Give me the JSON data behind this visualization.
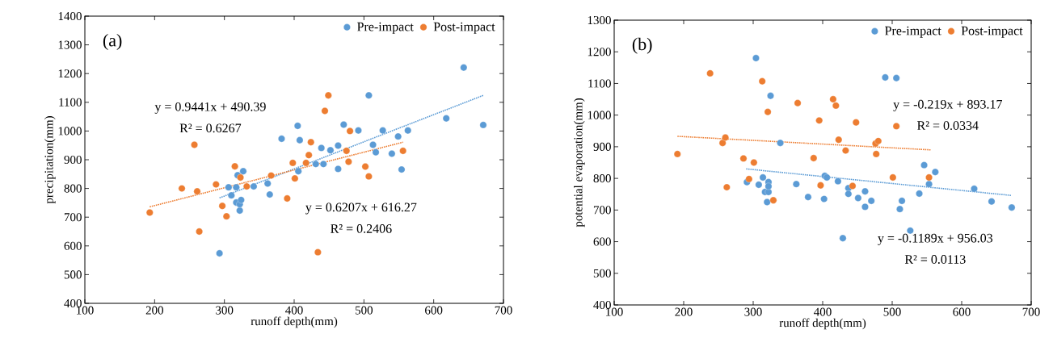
{
  "chart_data": [
    {
      "type": "scatter",
      "xlabel": "runoff depth(mm)",
      "ylabel": "precipitation(mm)",
      "xlim": [
        100,
        700
      ],
      "xticks": [
        100,
        200,
        300,
        400,
        500,
        600,
        700
      ],
      "ylim": [
        400,
        1400
      ],
      "yticks": [
        400,
        500,
        600,
        700,
        800,
        900,
        1000,
        1100,
        1200,
        1300,
        1400
      ],
      "grid": false,
      "legend": "top right",
      "marker": "circle",
      "annotations": [
        "(a)",
        "y = 0.9441x + 490.39",
        "R² = 0.6267",
        "y = 0.6207x + 616.27",
        "R² = 0.2406"
      ],
      "series": [
        {
          "name": "Pre-impact",
          "color": "#5b9bd5",
          "x": [
            293,
            306,
            310,
            317,
            317,
            319,
            322,
            322,
            323,
            324,
            327,
            342,
            362,
            365,
            382,
            405,
            406,
            408,
            431,
            439,
            442,
            452,
            463,
            463,
            471,
            492,
            507,
            513,
            517,
            527,
            540,
            549,
            554,
            563,
            618,
            643,
            671
          ],
          "values": [
            574,
            804,
            776,
            804,
            751,
            846,
            723,
            745,
            null,
            760,
            860,
            807,
            817,
            779,
            973,
            1018,
            860,
            968,
            885,
            941,
            885,
            933,
            949,
            868,
            1022,
            1002,
            1124,
            952,
            926,
            1002,
            921,
            981,
            866,
            1002,
            1044,
            1221,
            1021
          ]
        },
        {
          "name": "Post-impact",
          "color": "#ed7d31",
          "x": [
            193,
            239,
            257,
            261,
            264,
            288,
            297,
            303,
            315,
            323,
            332,
            367,
            390,
            398,
            401,
            417,
            421,
            424,
            434,
            444,
            449,
            475,
            478,
            480,
            502,
            507,
            556
          ],
          "values": [
            716,
            800,
            952,
            790,
            650,
            814,
            739,
            703,
            877,
            838,
            807,
            845,
            765,
            889,
            835,
            889,
            916,
            961,
            578,
            1070,
            1124,
            931,
            893,
            1000,
            876,
            842,
            931
          ]
        },
        {
          "type": "line",
          "color": "#5b9bd5",
          "line_style": "dotted",
          "marker": "none",
          "x": [
            293,
            671
          ],
          "values": [
            767,
            1124
          ]
        },
        {
          "type": "line",
          "color": "#ed7d31",
          "line_style": "dotted",
          "marker": "none",
          "x": [
            193,
            556
          ],
          "values": [
            736,
            961
          ]
        }
      ]
    },
    {
      "type": "scatter",
      "xlabel": "runoff depth(mm)",
      "ylabel": "potential evaporation(mm)",
      "xlim": [
        100,
        700
      ],
      "xticks": [
        100,
        200,
        300,
        400,
        500,
        600,
        700
      ],
      "ylim": [
        400,
        1300
      ],
      "yticks": [
        400,
        500,
        600,
        700,
        800,
        900,
        1000,
        1100,
        1200,
        1300
      ],
      "grid": false,
      "legend": "top right",
      "marker": "circle",
      "annotations": [
        "(b)",
        "y = -0.219x + 893.17",
        "R² = 0.0334",
        "y = -0.1189x + 956.03",
        "R² = 0.0113"
      ],
      "series": [
        {
          "name": "Pre-impact",
          "color": "#5b9bd5",
          "x": [
            291,
            304,
            308,
            314,
            317,
            320,
            322,
            322,
            322,
            325,
            339,
            360,
            362,
            379,
            403,
            402,
            406,
            422,
            429,
            437,
            437,
            451,
            461,
            461,
            470,
            490,
            506,
            511,
            514,
            526,
            539,
            546,
            553,
            562,
            618,
            643,
            672
          ],
          "values": [
            788,
            1180,
            780,
            803,
            757,
            725,
            788,
            757,
            775,
            1061,
            912,
            null,
            782,
            741,
            808,
            735,
            803,
            791,
            611,
            769,
            751,
            738,
            759,
            710,
            729,
            1119,
            1117,
            703,
            729,
            635,
            752,
            842,
            782,
            820,
            767,
            727,
            708
          ]
        },
        {
          "name": "Post-impact",
          "color": "#ed7d31",
          "x": [
            191,
            238,
            256,
            260,
            262,
            286,
            294,
            301,
            313,
            321,
            329,
            364,
            387,
            395,
            397,
            415,
            419,
            423,
            433,
            443,
            448,
            476,
            477,
            480,
            501,
            506,
            553
          ],
          "values": [
            877,
            1132,
            912,
            929,
            772,
            863,
            798,
            850,
            1107,
            1010,
            731,
            1038,
            864,
            983,
            778,
            1050,
            1030,
            922,
            888,
            776,
            977,
            910,
            877,
            918,
            803,
            965,
            803
          ]
        },
        {
          "type": "line",
          "color": "#5b9bd5",
          "line_style": "dotted",
          "marker": "none",
          "x": [
            290,
            672
          ],
          "values": [
            830,
            746
          ]
        },
        {
          "type": "line",
          "color": "#ed7d31",
          "line_style": "dotted",
          "marker": "none",
          "x": [
            191,
            556
          ],
          "values": [
            933,
            890
          ]
        }
      ]
    }
  ]
}
